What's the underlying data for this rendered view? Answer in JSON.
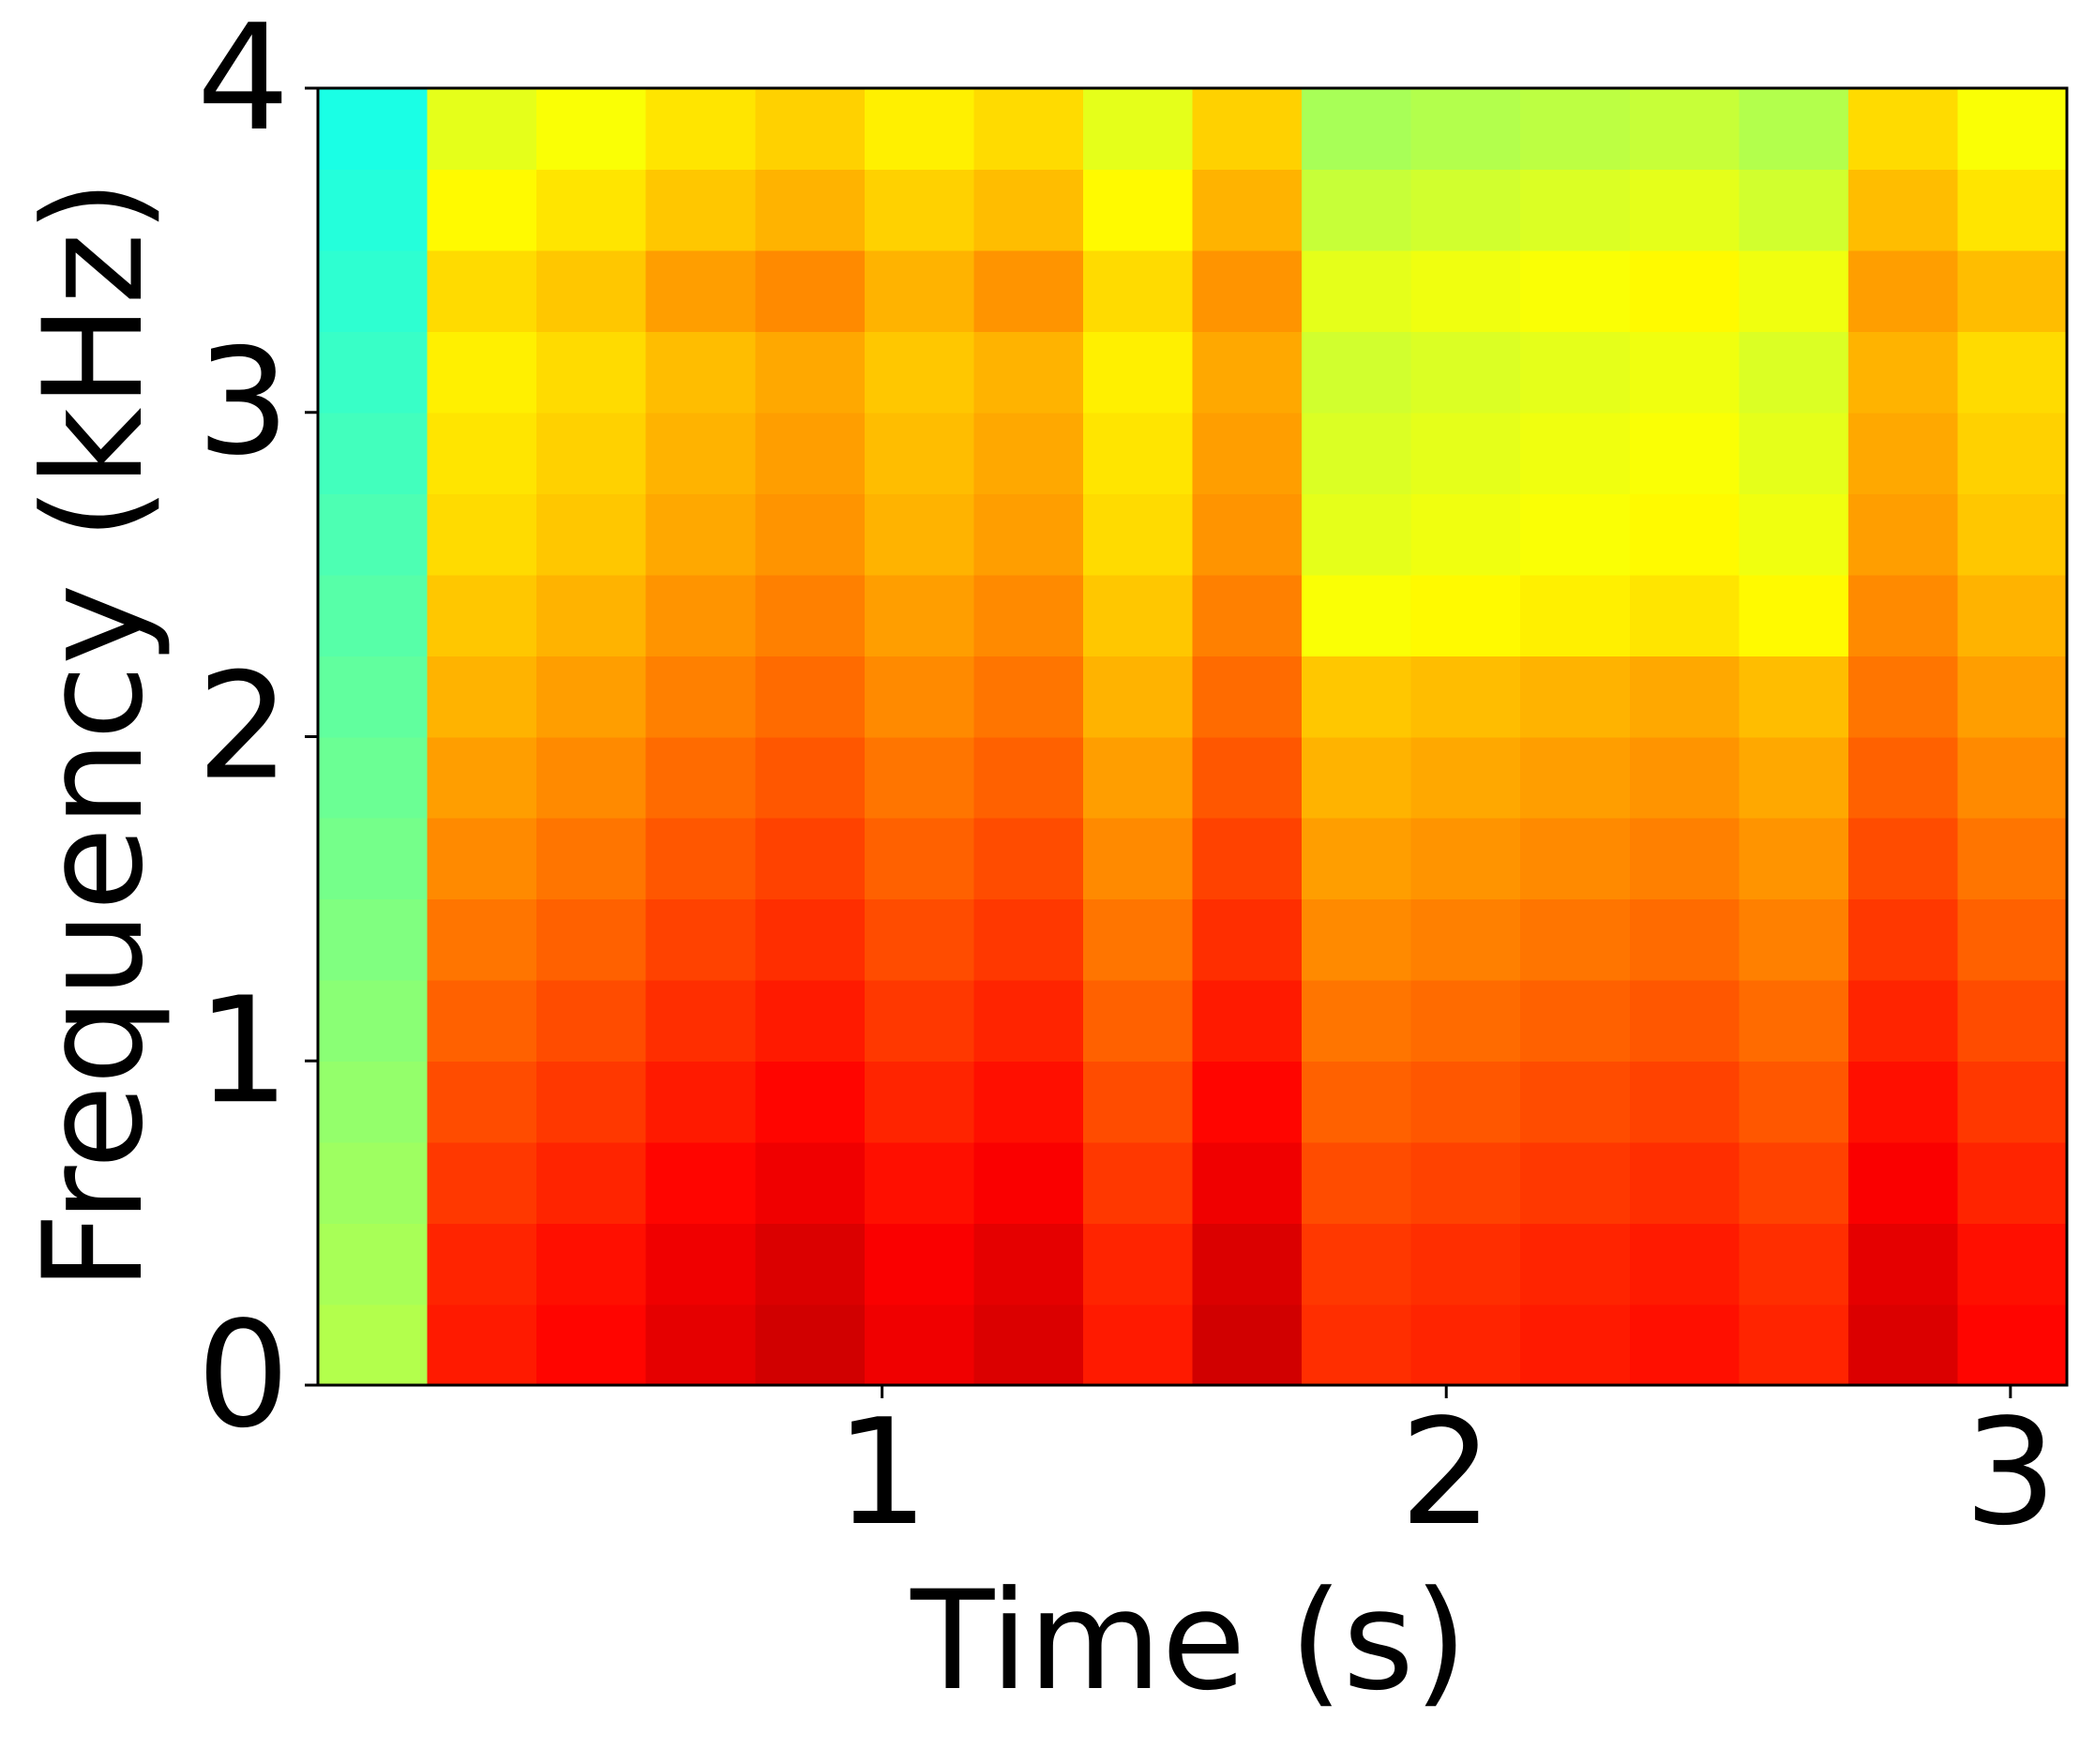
{
  "chart_data": {
    "type": "heatmap",
    "colormap": "jet",
    "zlim": [
      0,
      1
    ],
    "xlabel": "Time (s)",
    "ylabel": "Frequency (kHz)",
    "xlim": [
      0,
      3.1
    ],
    "xticks": [
      1,
      2,
      3
    ],
    "ylim": [
      0,
      4
    ],
    "yticks": [
      0,
      1,
      2,
      3,
      4
    ],
    "z": [
      [
        0.55,
        0.85,
        0.87,
        0.9,
        0.92,
        0.89,
        0.91,
        0.85,
        0.92,
        0.83,
        0.84,
        0.85,
        0.86,
        0.84,
        0.91,
        0.87
      ],
      [
        0.54,
        0.84,
        0.86,
        0.89,
        0.91,
        0.88,
        0.9,
        0.84,
        0.91,
        0.82,
        0.83,
        0.84,
        0.85,
        0.83,
        0.9,
        0.86
      ],
      [
        0.53,
        0.82,
        0.84,
        0.87,
        0.89,
        0.86,
        0.88,
        0.82,
        0.89,
        0.8,
        0.81,
        0.82,
        0.83,
        0.81,
        0.88,
        0.84
      ],
      [
        0.52,
        0.8,
        0.82,
        0.85,
        0.87,
        0.84,
        0.86,
        0.8,
        0.87,
        0.78,
        0.79,
        0.8,
        0.81,
        0.79,
        0.86,
        0.82
      ],
      [
        0.51,
        0.78,
        0.8,
        0.83,
        0.85,
        0.82,
        0.84,
        0.78,
        0.85,
        0.76,
        0.77,
        0.78,
        0.79,
        0.77,
        0.84,
        0.8
      ],
      [
        0.5,
        0.76,
        0.78,
        0.81,
        0.83,
        0.8,
        0.82,
        0.76,
        0.83,
        0.74,
        0.75,
        0.76,
        0.77,
        0.75,
        0.82,
        0.78
      ],
      [
        0.49,
        0.74,
        0.76,
        0.79,
        0.81,
        0.78,
        0.8,
        0.74,
        0.81,
        0.72,
        0.73,
        0.74,
        0.75,
        0.73,
        0.8,
        0.76
      ],
      [
        0.48,
        0.72,
        0.74,
        0.77,
        0.79,
        0.76,
        0.78,
        0.72,
        0.79,
        0.7,
        0.71,
        0.72,
        0.73,
        0.71,
        0.78,
        0.74
      ],
      [
        0.47,
        0.7,
        0.72,
        0.75,
        0.77,
        0.74,
        0.76,
        0.7,
        0.77,
        0.68,
        0.69,
        0.7,
        0.71,
        0.69,
        0.76,
        0.72
      ],
      [
        0.46,
        0.68,
        0.7,
        0.73,
        0.75,
        0.72,
        0.74,
        0.68,
        0.75,
        0.62,
        0.63,
        0.64,
        0.65,
        0.63,
        0.74,
        0.7
      ],
      [
        0.45,
        0.66,
        0.68,
        0.71,
        0.73,
        0.7,
        0.72,
        0.66,
        0.73,
        0.6,
        0.61,
        0.62,
        0.63,
        0.61,
        0.72,
        0.68
      ],
      [
        0.44,
        0.65,
        0.67,
        0.7,
        0.72,
        0.69,
        0.71,
        0.65,
        0.72,
        0.59,
        0.6,
        0.61,
        0.62,
        0.6,
        0.71,
        0.67
      ],
      [
        0.43,
        0.64,
        0.66,
        0.69,
        0.71,
        0.68,
        0.7,
        0.64,
        0.71,
        0.58,
        0.59,
        0.6,
        0.61,
        0.59,
        0.7,
        0.66
      ],
      [
        0.42,
        0.66,
        0.68,
        0.72,
        0.74,
        0.7,
        0.73,
        0.66,
        0.73,
        0.6,
        0.61,
        0.62,
        0.63,
        0.61,
        0.72,
        0.69
      ],
      [
        0.41,
        0.63,
        0.65,
        0.68,
        0.7,
        0.67,
        0.69,
        0.63,
        0.7,
        0.57,
        0.58,
        0.59,
        0.6,
        0.58,
        0.69,
        0.65
      ],
      [
        0.4,
        0.6,
        0.62,
        0.65,
        0.67,
        0.64,
        0.66,
        0.6,
        0.67,
        0.54,
        0.55,
        0.56,
        0.57,
        0.55,
        0.66,
        0.62
      ]
    ]
  }
}
